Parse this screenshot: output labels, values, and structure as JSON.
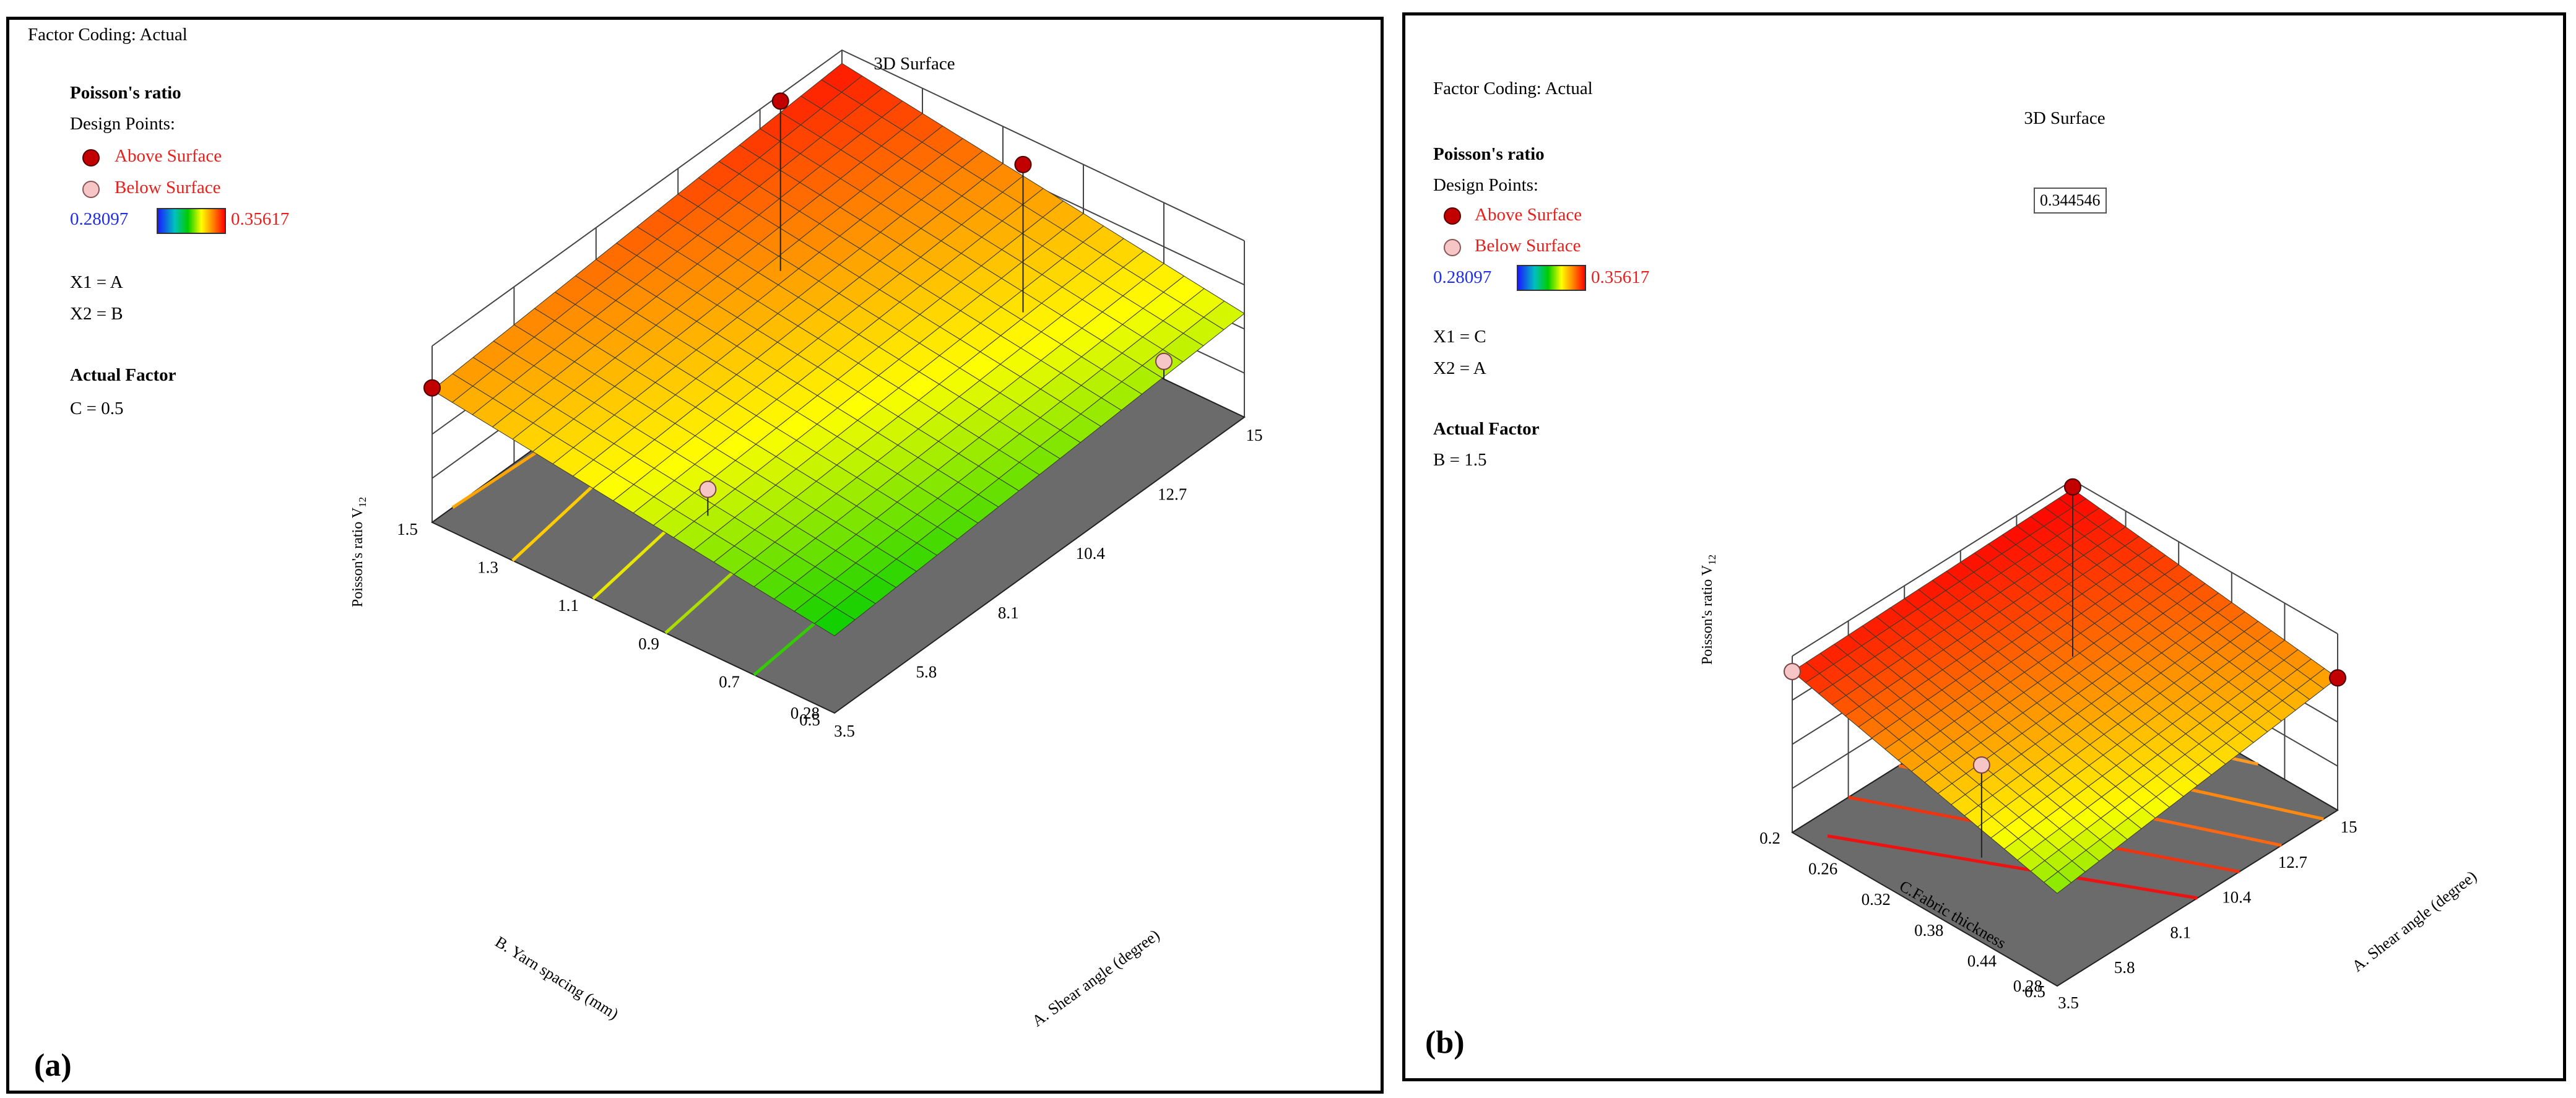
{
  "panels": [
    {
      "panel_label": "(a)",
      "factor_coding": "Factor Coding: Actual",
      "response": "Poisson's ratio",
      "design_points": "Design Points:",
      "legend": {
        "above": "Above Surface",
        "below": "Below Surface"
      },
      "colorbar": {
        "min": "0.28097",
        "max": "0.35617"
      },
      "x1": "X1 = A",
      "x2": "X2 = B",
      "actual_factor_title": "Actual Factor",
      "actual_factor_value": "C = 0.5",
      "plot_title": "3D Surface"
    },
    {
      "panel_label": "(b)",
      "factor_coding": "Factor Coding: Actual",
      "response": "Poisson's ratio",
      "design_points": "Design Points:",
      "legend": {
        "above": "Above Surface",
        "below": "Below Surface"
      },
      "colorbar": {
        "min": "0.28097",
        "max": "0.35617"
      },
      "x1": "X1 = C",
      "x2": "X2 = A",
      "actual_factor_title": "Actual Factor",
      "actual_factor_value": "B = 1.5",
      "plot_title": "3D Surface",
      "flag_value": "0.344546"
    }
  ],
  "colors": {
    "above_point": "#c20000",
    "below_point": "#f6c6c6",
    "legend_text": "#e8201c",
    "cbar_min_text": "#1f2ee8",
    "floor": "#6b6b6b"
  },
  "chart_data": [
    {
      "type": "surface",
      "title": "3D Surface",
      "zlabel": "Poisson's ratio V12",
      "zlim": [
        0.28,
        0.36
      ],
      "z_ticks": [
        "0.28",
        "0.3",
        "0.32",
        "0.34",
        "0.36"
      ],
      "x_axis": {
        "label": "A. Shear angle (degree)",
        "ticks": [
          "3.5",
          "5.8",
          "8.1",
          "10.4",
          "12.7",
          "15"
        ],
        "range": [
          3.5,
          15
        ]
      },
      "y_axis": {
        "label": "B. Yarn spacing (mm)",
        "ticks": [
          "0.5",
          "0.7",
          "0.9",
          "1.1",
          "1.3",
          "1.5"
        ],
        "range": [
          0.5,
          1.5
        ]
      },
      "surface_corners": {
        "A3.5_B0.5": 0.315,
        "A15_B0.5": 0.327,
        "A3.5_B1.5": 0.34,
        "A15_B1.5": 0.354
      },
      "design_points": [
        {
          "A": 3.5,
          "B": 1.5,
          "value": 0.341,
          "position": "above"
        },
        {
          "A": 15,
          "B": 1.5,
          "value": 0.357,
          "position": "above"
        },
        {
          "A": 15,
          "B": 0.5,
          "value": 0.347,
          "position": "above"
        },
        {
          "A": 3.5,
          "B": 0.5,
          "value": 0.292,
          "position": "below"
        },
        {
          "A": 15,
          "B": 0.5,
          "value": 0.288,
          "position": "below"
        }
      ],
      "contour_colors": [
        "#ffa500",
        "#ffcc00",
        "#e6e600",
        "#aadd00",
        "#33cc00"
      ]
    },
    {
      "type": "surface",
      "title": "3D Surface",
      "zlabel": "Poisson's ratio V12",
      "zlim": [
        0.28,
        0.36
      ],
      "z_ticks": [
        "0.28",
        "0.3",
        "0.32",
        "0.34",
        "0.36"
      ],
      "x_axis": {
        "label": "A. Shear angle (degree)",
        "ticks": [
          "3.5",
          "5.8",
          "8.1",
          "10.4",
          "12.7",
          "15"
        ],
        "range": [
          3.5,
          15
        ]
      },
      "y_axis": {
        "label": "C.Fabric thickness",
        "ticks": [
          "0.2",
          "0.26",
          "0.32",
          "0.38",
          "0.44",
          "0.5"
        ],
        "range": [
          0.2,
          0.5
        ]
      },
      "surface_corners": {
        "A15_C0.2": 0.356,
        "A15_C0.5": 0.357,
        "A3.5_C0.2": 0.345,
        "A3.5_C0.5": 0.34
      },
      "design_points": [
        {
          "A": 15,
          "C": 0.2,
          "value": 0.353,
          "position": "below"
        },
        {
          "A": 15,
          "C": 0.5,
          "value": 0.356,
          "position": "above"
        },
        {
          "A": 3.5,
          "C": 0.5,
          "value": 0.34,
          "position": "above"
        },
        {
          "A": 3.5,
          "C": 0.2,
          "value": 0.322,
          "position": "below"
        }
      ],
      "contour_colors": [
        "#ee1111",
        "#ee3311",
        "#ff6611",
        "#ff8811",
        "#ff9922"
      ]
    }
  ]
}
